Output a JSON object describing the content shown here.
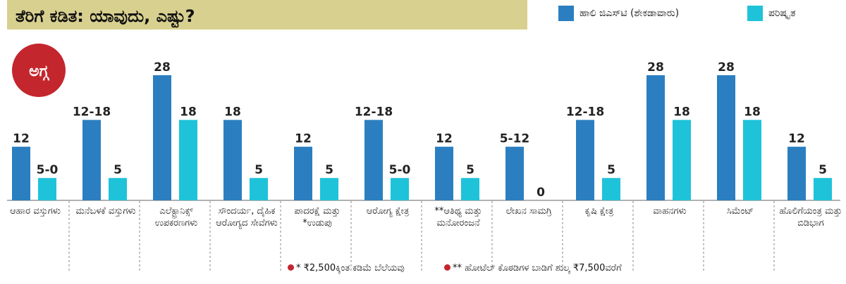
{
  "title": "ತೆರಿಗೆ ಕಡಿತ: ಯಾವುದು, ಎಷ್ಟು?",
  "badge": "ಅಗ್ಗ",
  "chart_data": {
    "type": "bar",
    "categories": [
      "ಆಹಾರ ವಸ್ತುಗಳು",
      "ಮನೆಬಳಕೆ ವಸ್ತುಗಳು",
      "ಎಲೆಕ್ಟ್ರಾನಿಕ್ಸ್ ಉಪಕರಣಗಳು",
      "ಸೌಂದರ್ಯ, ದೈಹಿಕ ಆರೋಗ್ಯದ ಸೇವೆಗಳು",
      "ಪಾದರಕ್ಷೆ ಮತ್ತು *ಉಡುಪು",
      "ಆರೋಗ್ಯ ಕ್ಷೇತ್ರ",
      "**ಆತಿಥ್ಯ ಮತ್ತು ಮನೋರಂಜನೆ",
      "ಲೇಖನ ಸಾಮಗ್ರಿ",
      "ಕೃಷಿ ಕ್ಷೇತ್ರ",
      "ವಾಹನಗಳು",
      "ಸಿಮೆಂಟ್",
      "ಹೊಲಿಗೆಯಂತ್ರ ಮತ್ತು ಬಿಡಿಭಾಗ"
    ],
    "series": [
      {
        "name": "ಹಾಲಿ ಜಿಎಸ್‌ಟಿ (ಶೇಕಡಾವಾರು)",
        "color": "#2b7fc0",
        "values": [
          12,
          18,
          28,
          18,
          12,
          18,
          12,
          12,
          18,
          28,
          28,
          12
        ],
        "value_labels": [
          "12",
          "12-18",
          "28",
          "18",
          "12",
          "12-18",
          "12",
          "5-12",
          "12-18",
          "28",
          "28",
          "12"
        ]
      },
      {
        "name": "ಪರಿಷ್ಕೃತ",
        "color": "#1ec3d9",
        "values": [
          5,
          5,
          18,
          5,
          5,
          5,
          5,
          0,
          5,
          18,
          18,
          5
        ],
        "value_labels": [
          "5-0",
          "5",
          "18",
          "5",
          "5",
          "5-0",
          "5",
          "0",
          "5",
          "18",
          "18",
          "5"
        ]
      }
    ]
  },
  "footnotes": [
    "* ₹2,500ಕ್ಕಿಂತ ಕಡಿಮೆ ಬೆಲೆಯವು",
    "** ಹೋಟೆಲ್ ಕೊಠಡಿಗಳ ಬಾಡಿಗೆ ಶುಲ್ಕ ₹7,500ವರೆಗೆ"
  ]
}
